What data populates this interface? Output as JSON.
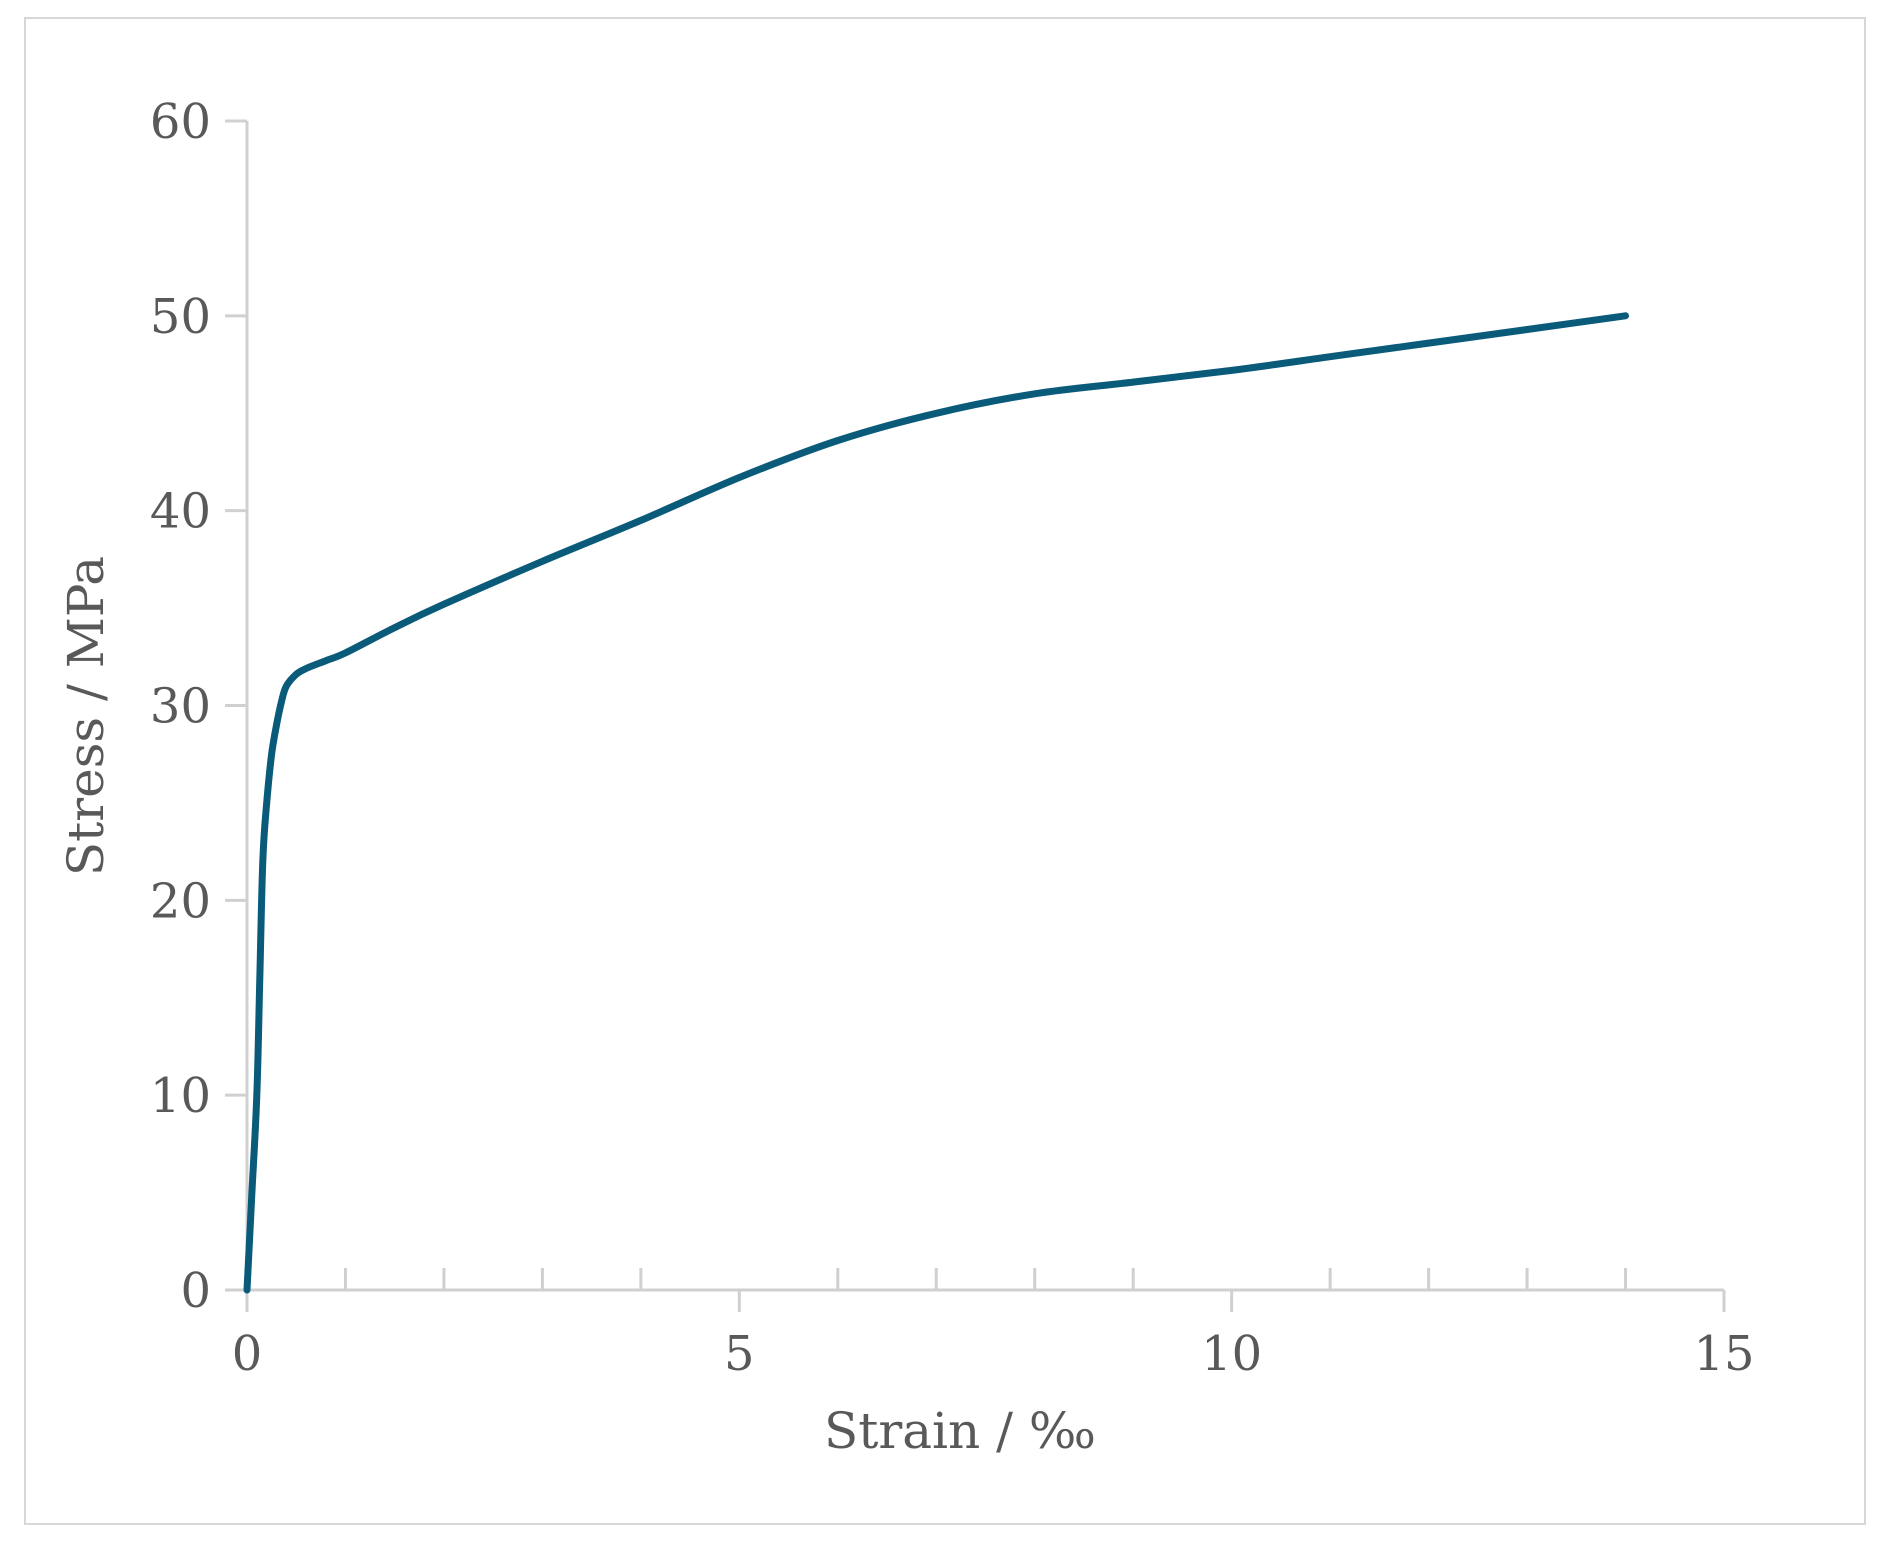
{
  "chart_data": {
    "type": "line",
    "title": "",
    "xlabel": "Strain / ‰",
    "ylabel": "Stress / MPa",
    "xlim": [
      0,
      15
    ],
    "ylim": [
      0,
      60
    ],
    "x_major_ticks": [
      0,
      5,
      10,
      15
    ],
    "x_minor_ticks": [
      1,
      2,
      3,
      4,
      6,
      7,
      8,
      9,
      11,
      12,
      13,
      14
    ],
    "y_ticks": [
      0,
      10,
      20,
      30,
      40,
      50,
      60
    ],
    "x_tick_labels": [
      "0",
      "5",
      "10",
      "15"
    ],
    "y_tick_labels": [
      "0",
      "10",
      "20",
      "30",
      "40",
      "50",
      "60"
    ],
    "grid": false,
    "legend": "none",
    "colors": {
      "series": "#0a5a7a",
      "axis": "#d0d0d0",
      "text": "#595959"
    },
    "series": [
      {
        "x": [
          0,
          0.05,
          0.1,
          0.13,
          0.16,
          0.2,
          0.25,
          0.3,
          0.35,
          0.4,
          0.5,
          0.6,
          0.8,
          1.0,
          1.5,
          2.0,
          3.0,
          4.0,
          5.0,
          6.0,
          7.0,
          8.0,
          9.0,
          10.0,
          11.0,
          12.0,
          13.0,
          14.0
        ],
        "y": [
          0,
          5,
          10,
          16,
          22,
          25,
          27.5,
          29,
          30.2,
          31,
          31.6,
          31.9,
          32.3,
          32.7,
          34,
          35.2,
          37.4,
          39.5,
          41.7,
          43.6,
          45,
          46,
          46.6,
          47.2,
          47.9,
          48.6,
          49.3,
          50
        ]
      }
    ]
  }
}
